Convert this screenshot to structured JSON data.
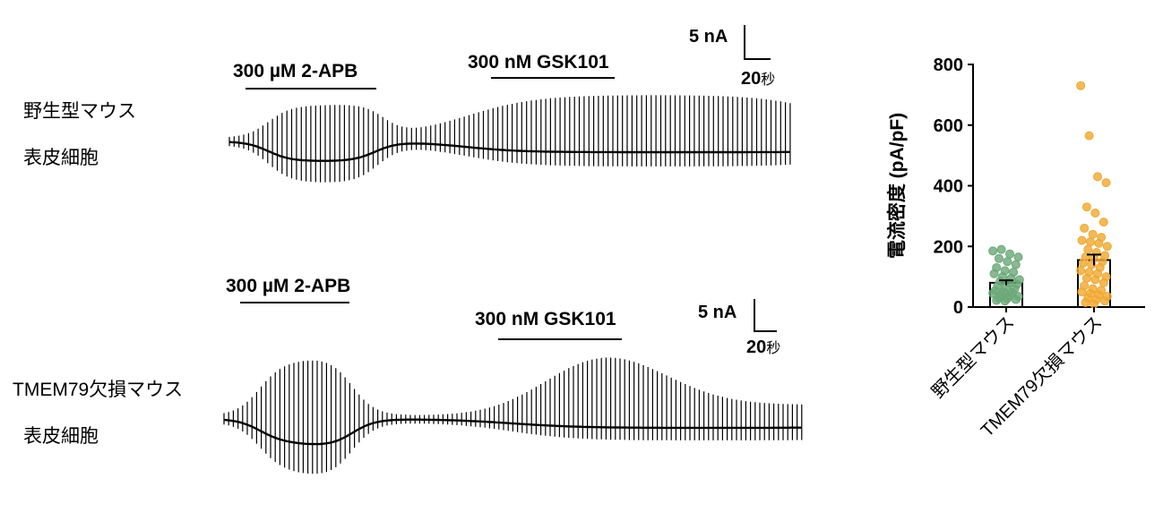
{
  "traces": [
    {
      "label_lines": [
        "野生型マウス",
        "表皮細胞"
      ],
      "drug1": "300 µM 2-APB",
      "drug2": "300 nM GSK101",
      "scale_current": "5 nA",
      "scale_time": "20",
      "scale_time_unit": "秒"
    },
    {
      "label_lines": [
        "TMEM79欠損マウス",
        "表皮細胞"
      ],
      "drug1": "300 µM 2-APB",
      "drug2": "300 nM GSK101",
      "scale_current": "5 nA",
      "scale_time": "20",
      "scale_time_unit": "秒"
    }
  ],
  "chart_data": {
    "type": "bar",
    "ylabel": "電流密度 (pA/pF)",
    "ylim": [
      0,
      800
    ],
    "yticks": [
      0,
      200,
      400,
      600,
      800
    ],
    "categories": [
      "野生型マウス",
      "TMEM79欠損マウス"
    ],
    "values": [
      80,
      155
    ],
    "errors": [
      8,
      18
    ],
    "colors": [
      "#6aa877",
      "#f0a830"
    ],
    "points": [
      [
        185,
        190,
        175,
        165,
        160,
        150,
        140,
        130,
        120,
        115,
        110,
        100,
        95,
        90,
        85,
        80,
        75,
        70,
        65,
        60,
        55,
        50,
        48,
        45,
        42,
        38,
        35,
        30,
        28,
        25,
        22,
        20
      ],
      [
        730,
        565,
        430,
        410,
        330,
        310,
        280,
        260,
        240,
        230,
        220,
        215,
        210,
        200,
        190,
        180,
        170,
        165,
        160,
        150,
        145,
        140,
        130,
        120,
        115,
        110,
        100,
        95,
        90,
        80,
        70,
        60,
        55,
        50,
        45,
        40,
        35,
        30,
        25,
        20,
        15,
        10
      ]
    ]
  }
}
